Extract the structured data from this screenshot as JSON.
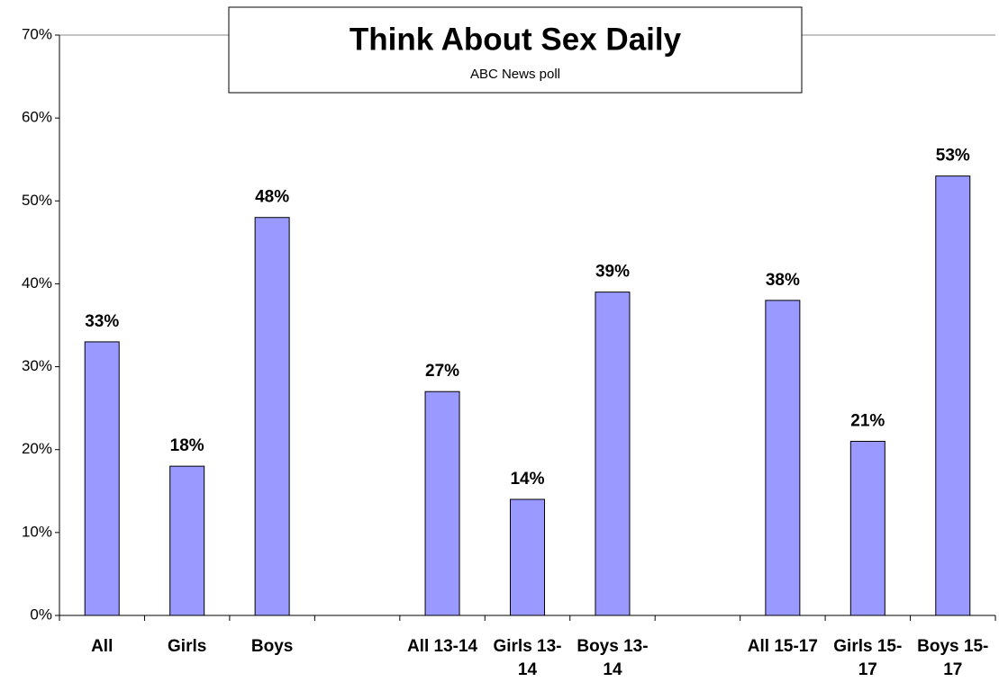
{
  "chart_data": {
    "type": "bar",
    "title": "Think About Sex Daily",
    "subtitle": "ABC News poll",
    "categories": [
      "All",
      "Girls",
      "Boys",
      null,
      "All 13-14",
      "Girls 13-14",
      "Boys 13-14",
      null,
      "All 15-17",
      "Girls 15-17",
      "Boys 15-17"
    ],
    "values": [
      33,
      18,
      48,
      null,
      27,
      14,
      39,
      null,
      38,
      21,
      53
    ],
    "value_labels": [
      "33%",
      "18%",
      "48%",
      null,
      "27%",
      "14%",
      "39%",
      null,
      "38%",
      "21%",
      "53%"
    ],
    "color": "#9999ff",
    "ylim": [
      0,
      70
    ],
    "yticks": [
      {
        "value": 0,
        "label": "0%"
      },
      {
        "value": 10,
        "label": "10%"
      },
      {
        "value": 20,
        "label": "20%"
      },
      {
        "value": 30,
        "label": "30%"
      },
      {
        "value": 40,
        "label": "40%"
      },
      {
        "value": 50,
        "label": "50%"
      },
      {
        "value": 60,
        "label": "60%"
      },
      {
        "value": 70,
        "label": "70%"
      }
    ]
  }
}
